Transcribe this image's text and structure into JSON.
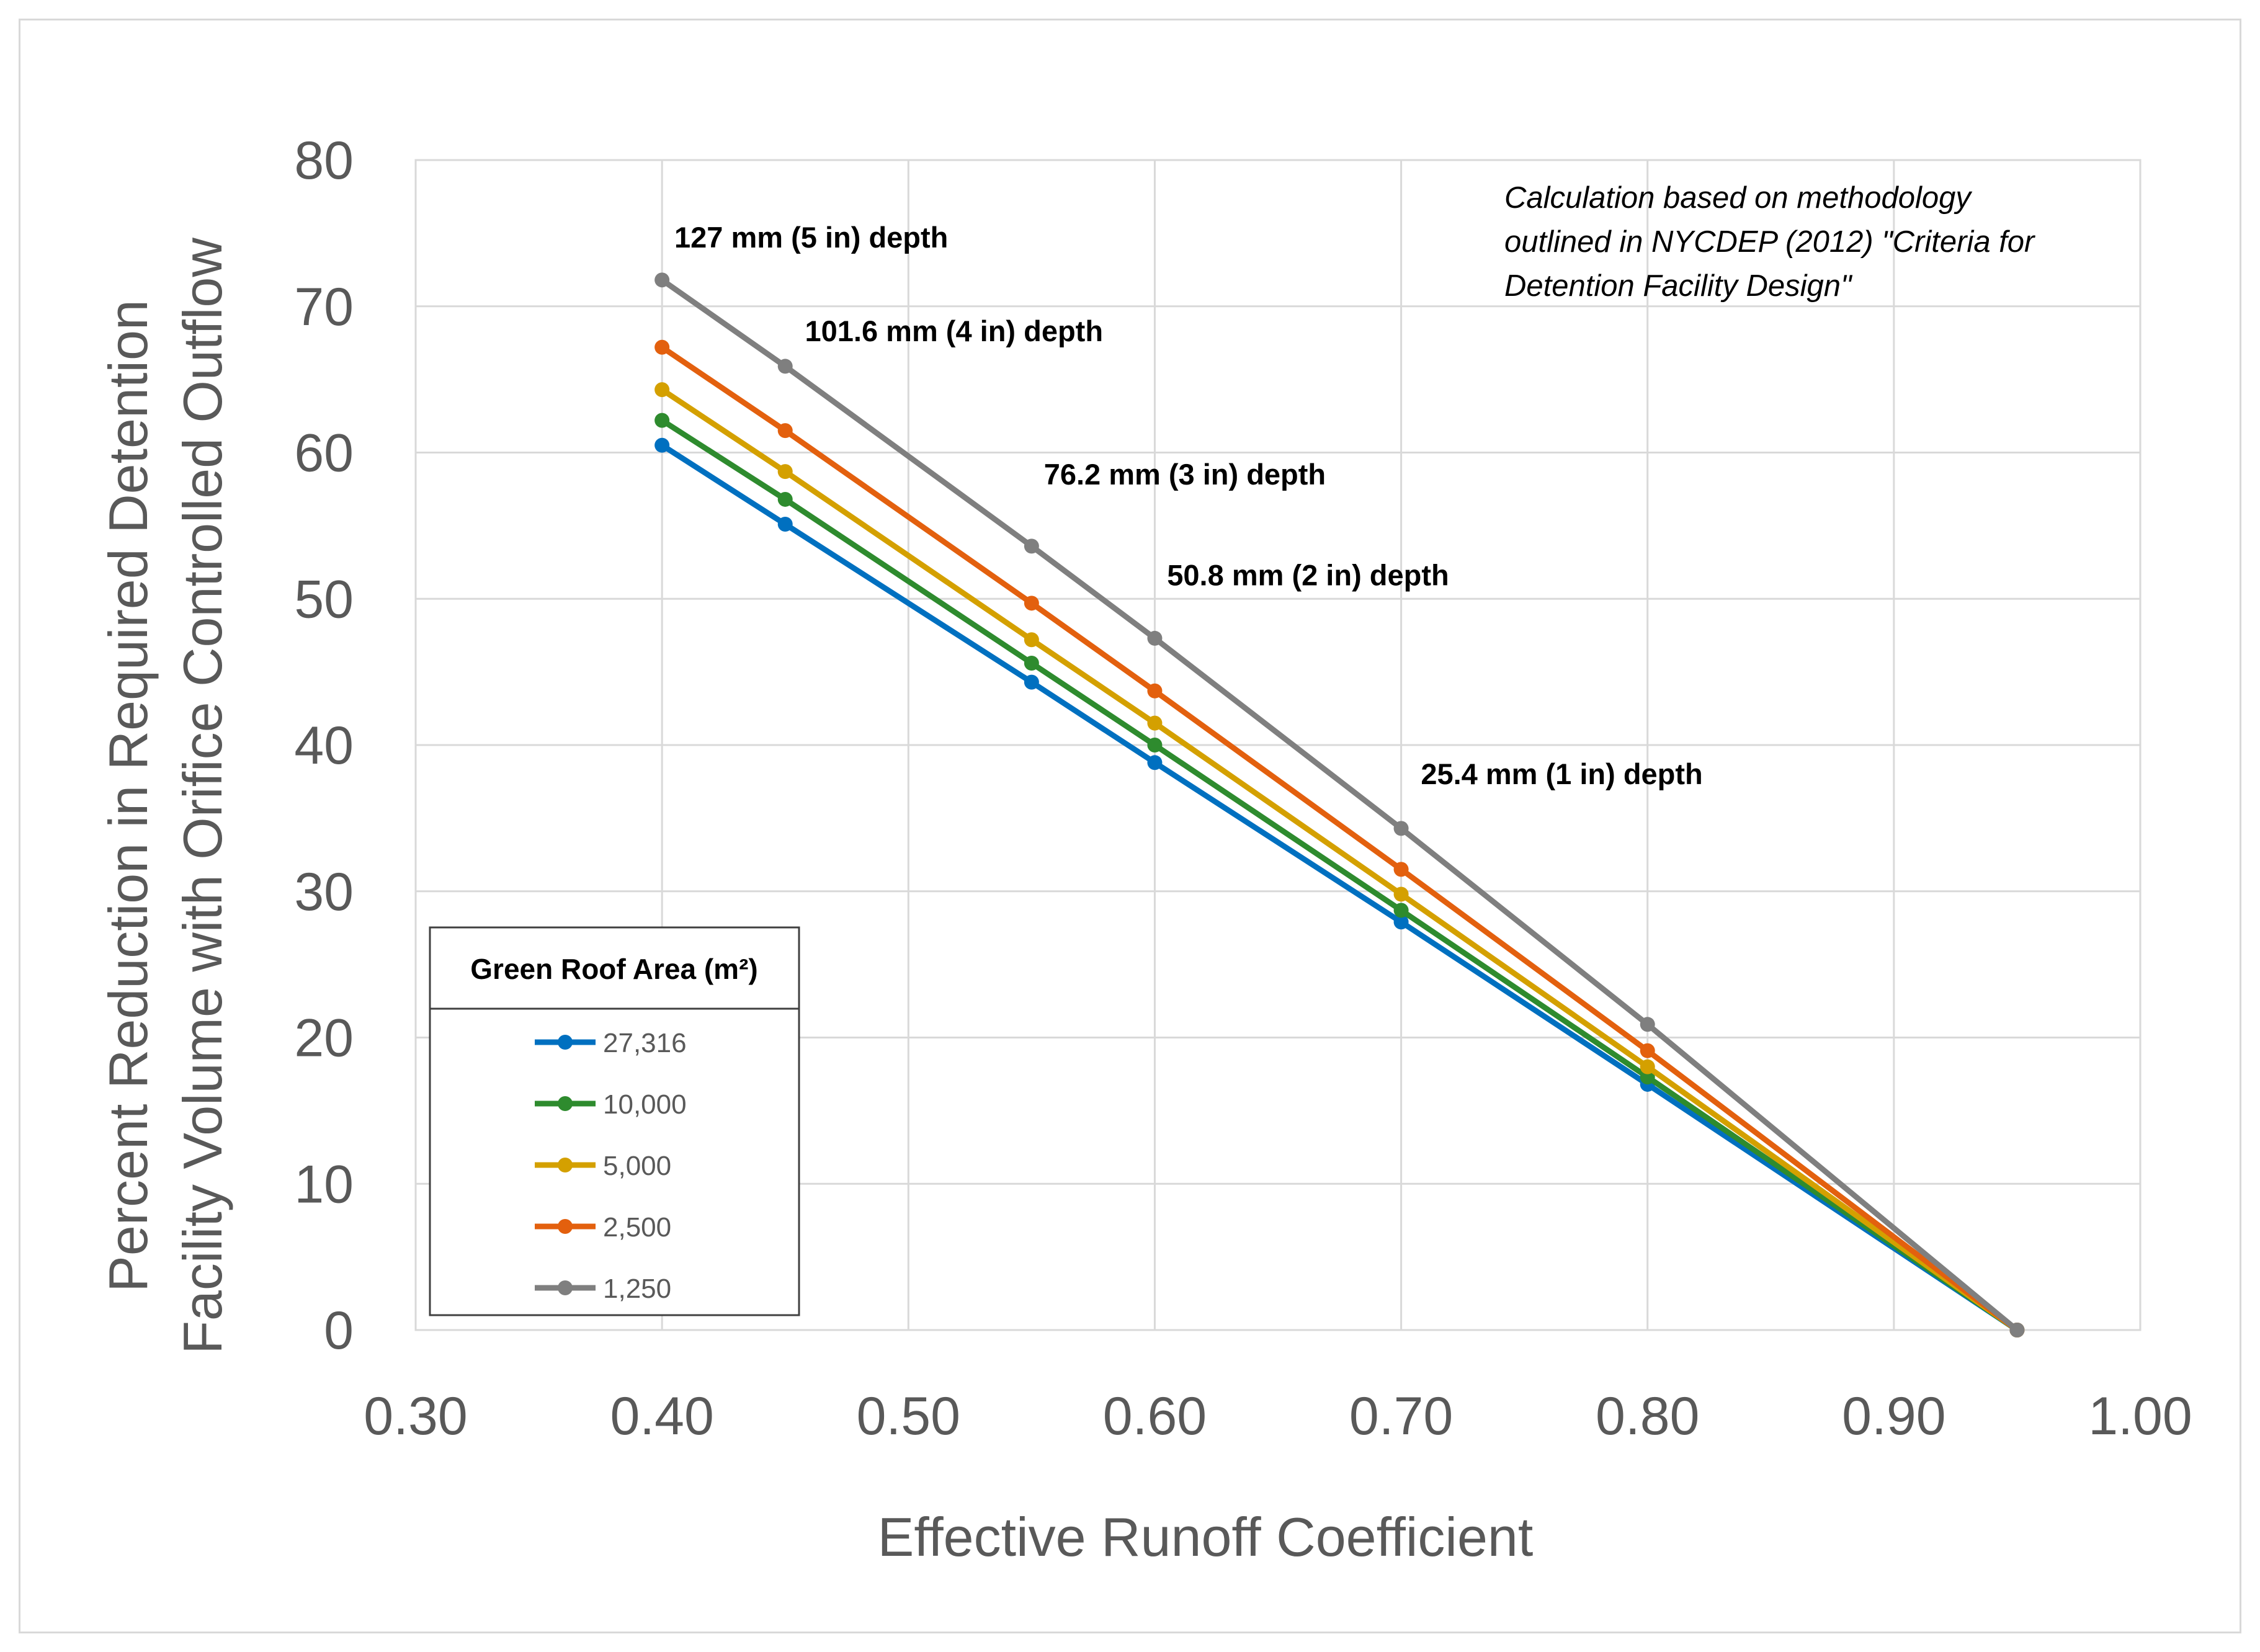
{
  "chart_data": {
    "type": "line",
    "title": "",
    "xlabel": "Effective Runoff Coefficient",
    "ylabel_line1": "Percent Reduction in Required Detention",
    "ylabel_line2": "Facility Volume with Orifice Controlled Outflow",
    "xlim": [
      0.3,
      1.0
    ],
    "ylim": [
      0,
      80
    ],
    "xticks": [
      "0.30",
      "0.40",
      "0.50",
      "0.60",
      "0.70",
      "0.80",
      "0.90",
      "1.00"
    ],
    "xtick_values": [
      0.3,
      0.4,
      0.5,
      0.6,
      0.7,
      0.8,
      0.9,
      1.0
    ],
    "yticks": [
      "0",
      "10",
      "20",
      "30",
      "40",
      "50",
      "60",
      "70",
      "80"
    ],
    "ytick_values": [
      0,
      10,
      20,
      30,
      40,
      50,
      60,
      70,
      80
    ],
    "grid": true,
    "x": [
      0.4,
      0.45,
      0.55,
      0.6,
      0.7,
      0.8,
      0.95
    ],
    "series": [
      {
        "name": "27,316",
        "color": "#0070c0",
        "values": [
          60.5,
          55.1,
          44.3,
          38.8,
          27.9,
          16.8,
          0
        ]
      },
      {
        "name": "10,000",
        "color": "#2e8b2e",
        "values": [
          62.2,
          56.8,
          45.6,
          40.0,
          28.7,
          17.3,
          0
        ]
      },
      {
        "name": "5,000",
        "color": "#d4a000",
        "values": [
          64.3,
          58.7,
          47.2,
          41.5,
          29.8,
          18.0,
          0
        ]
      },
      {
        "name": "2,500",
        "color": "#e3600e",
        "values": [
          67.2,
          61.5,
          49.7,
          43.7,
          31.5,
          19.1,
          0
        ]
      },
      {
        "name": "1,250",
        "color": "#7f7f7f",
        "values": [
          71.8,
          65.9,
          53.6,
          47.3,
          34.3,
          20.9,
          0
        ]
      }
    ],
    "legend": {
      "title": "Green Roof Area (m²)",
      "placement": "bottom-left"
    },
    "annotations": [
      {
        "text": "127 mm (5 in) depth",
        "x": 0.405,
        "y": 74.7
      },
      {
        "text": "101.6 mm (4 in) depth",
        "x": 0.458,
        "y": 68.3
      },
      {
        "text": "76.2 mm (3 in) depth",
        "x": 0.555,
        "y": 58.5
      },
      {
        "text": "50.8 mm (2 in) depth",
        "x": 0.605,
        "y": 51.6
      },
      {
        "text": "25.4 mm (1 in) depth",
        "x": 0.708,
        "y": 38.0
      }
    ],
    "note_lines": [
      "Calculation based on methodology",
      "outlined in NYCDEP (2012) \"Criteria for",
      "Detention Facility Design\""
    ]
  }
}
